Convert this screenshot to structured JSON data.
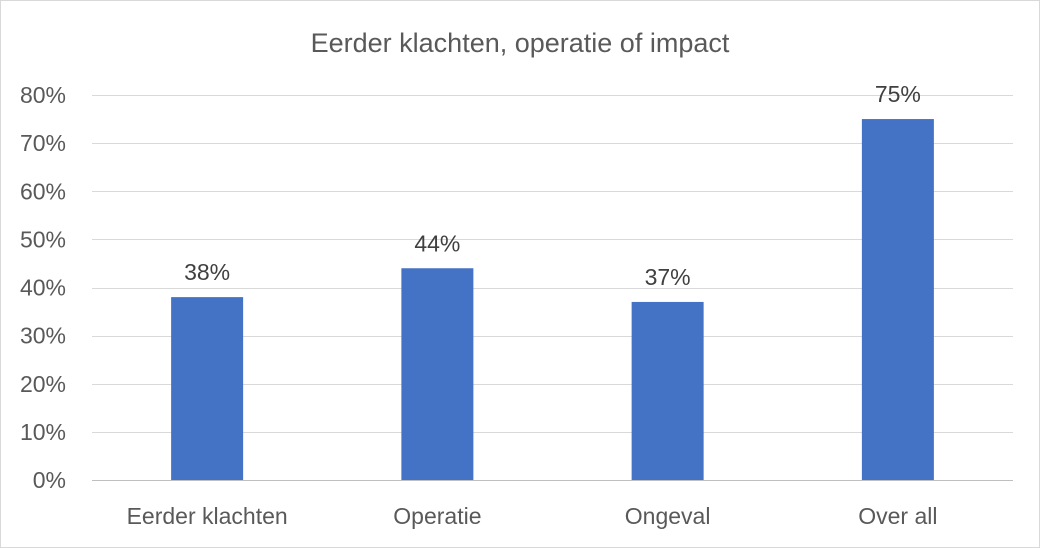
{
  "chart_data": {
    "type": "bar",
    "title": "Eerder klachten, operatie of impact",
    "categories": [
      "Eerder klachten",
      "Operatie",
      "Ongeval",
      "Over all"
    ],
    "values": [
      0.38,
      0.44,
      0.37,
      0.75
    ],
    "data_labels": [
      "38%",
      "44%",
      "37%",
      "75%"
    ],
    "ylim": [
      0,
      0.8
    ],
    "yticks": [
      0,
      0.1,
      0.2,
      0.3,
      0.4,
      0.5,
      0.6,
      0.7,
      0.8
    ],
    "ytick_labels": [
      "0%",
      "10%",
      "20%",
      "30%",
      "40%",
      "50%",
      "60%",
      "70%",
      "80%"
    ],
    "xlabel": "",
    "ylabel": "",
    "grid": true,
    "legend": "none",
    "bar_color": "#4472c4"
  }
}
